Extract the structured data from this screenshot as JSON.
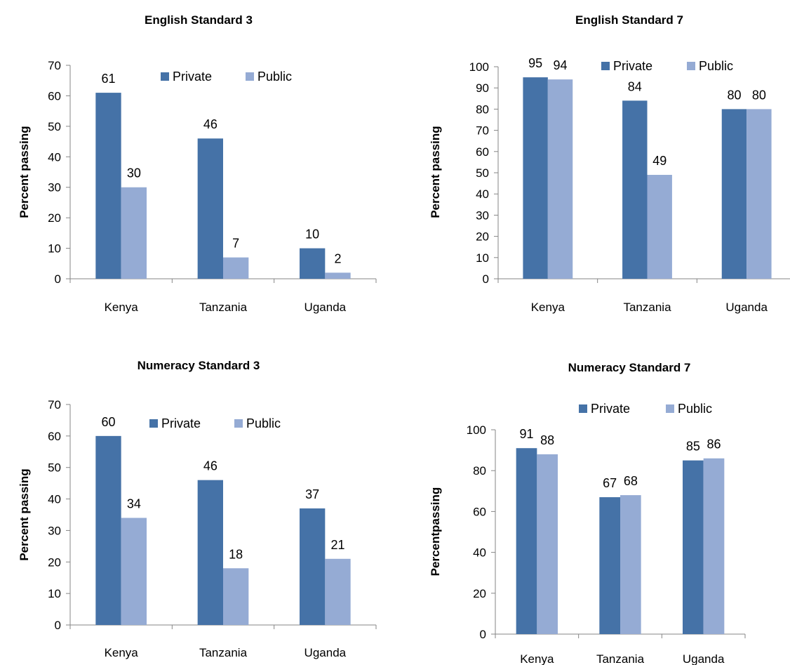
{
  "chart_data": [
    {
      "type": "bar",
      "title": "English Standard 3",
      "xlabel": "",
      "ylabel": "Percent passing",
      "categories": [
        "Kenya",
        "Tanzania",
        "Uganda"
      ],
      "series": [
        {
          "name": "Private",
          "values": [
            61,
            46,
            10
          ],
          "color": "#4572A7"
        },
        {
          "name": "Public",
          "values": [
            30,
            7,
            2
          ],
          "color": "#95ABD4"
        }
      ],
      "ylim": [
        0,
        70
      ],
      "yticks": [
        0,
        10,
        20,
        30,
        40,
        50,
        60,
        70
      ],
      "grid": false,
      "legend": "top-right"
    },
    {
      "type": "bar",
      "title": "English Standard 7",
      "xlabel": "",
      "ylabel": "Percent passing",
      "categories": [
        "Kenya",
        "Tanzania",
        "Uganda"
      ],
      "series": [
        {
          "name": "Private",
          "values": [
            95,
            84,
            80
          ],
          "color": "#4572A7"
        },
        {
          "name": "Public",
          "values": [
            94,
            49,
            80
          ],
          "color": "#95ABD4"
        }
      ],
      "ylim": [
        0,
        100
      ],
      "yticks": [
        0,
        10,
        20,
        30,
        40,
        50,
        60,
        70,
        80,
        90,
        100
      ],
      "grid": false,
      "legend": "top-right"
    },
    {
      "type": "bar",
      "title": "Numeracy Standard 3",
      "xlabel": "",
      "ylabel": "Percent passing",
      "categories": [
        "Kenya",
        "Tanzania",
        "Uganda"
      ],
      "series": [
        {
          "name": "Private",
          "values": [
            60,
            46,
            37
          ],
          "color": "#4572A7"
        },
        {
          "name": "Public",
          "values": [
            34,
            18,
            21
          ],
          "color": "#95ABD4"
        }
      ],
      "ylim": [
        0,
        70
      ],
      "yticks": [
        0,
        10,
        20,
        30,
        40,
        50,
        60,
        70
      ],
      "grid": false,
      "legend": "top-right"
    },
    {
      "type": "bar",
      "title": "Numeracy Standard 7",
      "xlabel": "",
      "ylabel": "Percentpassing",
      "categories": [
        "Kenya",
        "Tanzania",
        "Uganda"
      ],
      "series": [
        {
          "name": "Private",
          "values": [
            91,
            67,
            85
          ],
          "color": "#4572A7"
        },
        {
          "name": "Public",
          "values": [
            88,
            68,
            86
          ],
          "color": "#95ABD4"
        }
      ],
      "ylim": [
        0,
        100
      ],
      "yticks": [
        0,
        20,
        40,
        60,
        80,
        100
      ],
      "grid": false,
      "legend": "top-center"
    }
  ]
}
